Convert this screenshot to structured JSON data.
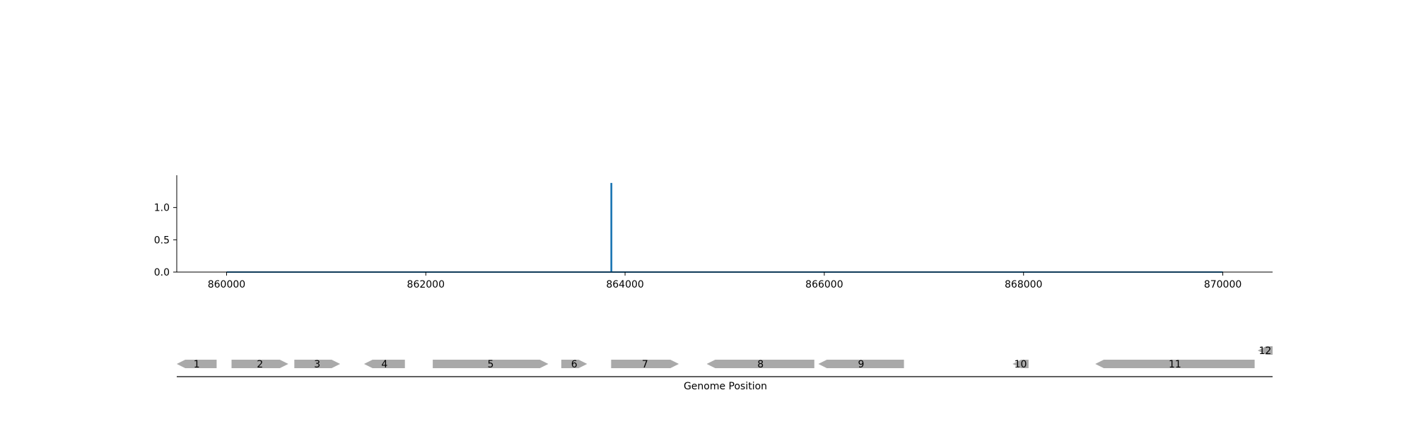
{
  "chart_data": [
    {
      "type": "line",
      "title": "",
      "xlabel": "",
      "ylabel": "",
      "xlim": [
        859500,
        870500
      ],
      "ylim": [
        0,
        1.5
      ],
      "x_ticks": [
        {
          "value": 860000,
          "label": "860000"
        },
        {
          "value": 862000,
          "label": "862000"
        },
        {
          "value": 864000,
          "label": "864000"
        },
        {
          "value": 866000,
          "label": "866000"
        },
        {
          "value": 868000,
          "label": "868000"
        },
        {
          "value": 870000,
          "label": "870000"
        }
      ],
      "y_ticks": [
        {
          "value": 0.0,
          "label": "0.0"
        },
        {
          "value": 0.5,
          "label": "0.5"
        },
        {
          "value": 1.0,
          "label": "1.0"
        }
      ],
      "grid": false,
      "series": [
        {
          "color": "#1f77b4",
          "points": [
            [
              860000,
              0
            ],
            [
              863860,
              0
            ],
            [
              863860,
              1.37
            ],
            [
              863865,
              1.37
            ],
            [
              863865,
              0
            ],
            [
              870000,
              0
            ]
          ]
        }
      ]
    },
    {
      "type": "gene-track",
      "xlabel": "Genome Position",
      "xlim": [
        859500,
        870500
      ],
      "feature_color": "#a9a9a9",
      "features": [
        {
          "label": "1",
          "start": 859500,
          "end": 859900,
          "strand": "-",
          "level": 0
        },
        {
          "label": "2",
          "start": 860050,
          "end": 860620,
          "strand": "+",
          "level": 0
        },
        {
          "label": "3",
          "start": 860680,
          "end": 861140,
          "strand": "+",
          "level": 0
        },
        {
          "label": "4",
          "start": 861380,
          "end": 861790,
          "strand": "-",
          "level": 0
        },
        {
          "label": "5",
          "start": 862070,
          "end": 863230,
          "strand": "+",
          "level": 0
        },
        {
          "label": "6",
          "start": 863360,
          "end": 863620,
          "strand": "+",
          "level": 0
        },
        {
          "label": "7",
          "start": 863860,
          "end": 864540,
          "strand": "+",
          "level": 0
        },
        {
          "label": "8",
          "start": 864820,
          "end": 865900,
          "strand": "-",
          "level": 0
        },
        {
          "label": "9",
          "start": 865940,
          "end": 866800,
          "strand": "-",
          "level": 0
        },
        {
          "label": "10",
          "start": 867890,
          "end": 868050,
          "strand": "-",
          "level": 0
        },
        {
          "label": "11",
          "start": 868720,
          "end": 870320,
          "strand": "-",
          "level": 0
        },
        {
          "label": "12",
          "start": 870350,
          "end": 870500,
          "strand": "-",
          "level": 1
        }
      ]
    }
  ]
}
